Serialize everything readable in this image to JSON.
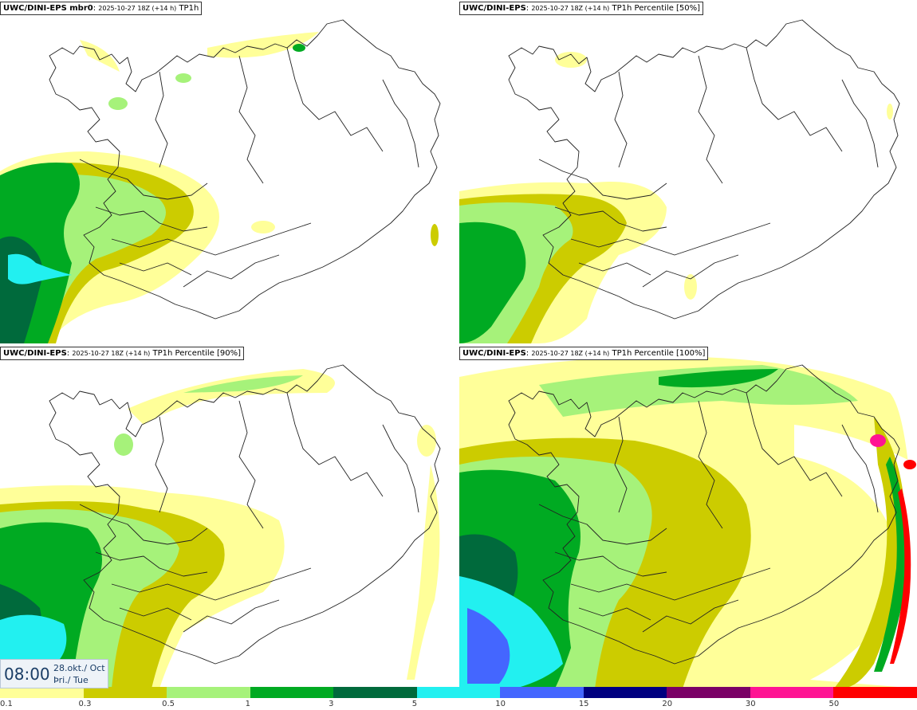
{
  "panels": [
    {
      "model": "UWC/DINI-EPS mbr0",
      "run": "2025-10-27 18Z (+14 h)",
      "field": "TP1h"
    },
    {
      "model": "UWC/DINI-EPS",
      "run": "2025-10-27 18Z (+14 h)",
      "field": "TP1h Percentile [50%]"
    },
    {
      "model": "UWC/DINI-EPS",
      "run": "2025-10-27 18Z (+14 h)",
      "field": "TP1h Percentile [90%]"
    },
    {
      "model": "UWC/DINI-EPS",
      "run": "2025-10-27 18Z (+14 h)",
      "field": "TP1h Percentile [100%]"
    }
  ],
  "valid": {
    "time": "08:00",
    "date": "28.okt./ Oct",
    "weekday": "Þri./ Tue"
  },
  "legend": {
    "levels": [
      "0.1",
      "0.3",
      "0.5",
      "1",
      "3",
      "5",
      "10",
      "15",
      "20",
      "30",
      "50"
    ],
    "colors": [
      "#ffff99",
      "#cccc00",
      "#a6f27a",
      "#00aa22",
      "#006a3c",
      "#22f0f0",
      "#4466ff",
      "#000080",
      "#7a0066",
      "#ff1493",
      "#ff0000"
    ]
  },
  "map_colors": {
    "light_yellow": "#ffff99",
    "olive": "#cccc00",
    "light_green": "#a6f27a",
    "green": "#00aa22",
    "dark_green": "#006a3c",
    "cyan": "#22f0f0",
    "blue": "#4466ff",
    "magenta": "#e0007a",
    "red": "#ff0000",
    "coast": "#222222"
  }
}
